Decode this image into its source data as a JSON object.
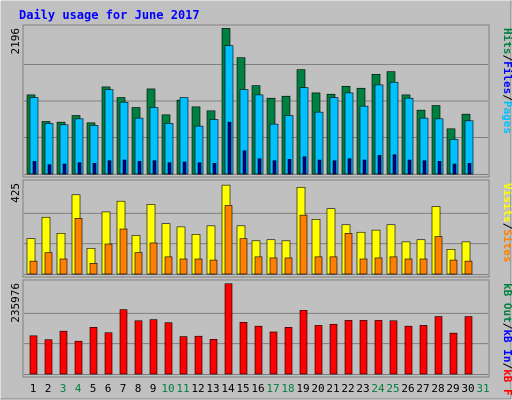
{
  "chart_data": {
    "type": "bar",
    "title": "Daily usage for June 2017",
    "categories": [
      "1",
      "2",
      "3",
      "4",
      "5",
      "6",
      "7",
      "8",
      "9",
      "10",
      "11",
      "12",
      "13",
      "14",
      "15",
      "16",
      "17",
      "18",
      "19",
      "20",
      "21",
      "22",
      "23",
      "24",
      "25",
      "26",
      "27",
      "28",
      "29",
      "30",
      "31"
    ],
    "weekend_days": [
      "3",
      "4",
      "10",
      "11",
      "17",
      "18",
      "24",
      "25",
      "31"
    ],
    "panels": [
      {
        "name": "hits",
        "scale_label": "2196",
        "ymax": 2196,
        "legend": [
          "Pages",
          "/",
          "Files",
          "/",
          "Hits"
        ],
        "series": [
          {
            "name": "Hits",
            "color": "#008040",
            "values": [
              1190,
              790,
              780,
              880,
              770,
              1310,
              1150,
              1000,
              1280,
              890,
              1110,
              1010,
              950,
              2190,
              1750,
              1330,
              1140,
              1170,
              1570,
              1220,
              1200,
              1320,
              1290,
              1500,
              1540,
              1190,
              960,
              1030,
              680,
              900,
              0
            ]
          },
          {
            "name": "Files",
            "color": "#00c0ff",
            "values": [
              1150,
              760,
              740,
              830,
              730,
              1270,
              1080,
              840,
              1000,
              760,
              1150,
              720,
              820,
              1930,
              1270,
              1190,
              750,
              880,
              1300,
              930,
              1150,
              1220,
              1020,
              1340,
              1380,
              1140,
              840,
              830,
              520,
              800,
              0
            ]
          },
          {
            "name": "Pages",
            "color": "#00008b",
            "values": [
              190,
              140,
              150,
              170,
              160,
              200,
              210,
              190,
              200,
              170,
              180,
              170,
              160,
              780,
              350,
              230,
              200,
              220,
              260,
              210,
              200,
              230,
              210,
              280,
              290,
              210,
              200,
              190,
              150,
              160,
              0
            ]
          }
        ]
      },
      {
        "name": "visits",
        "scale_label": "425",
        "ymax": 425,
        "legend": [
          "Visits",
          "/",
          "Sites"
        ],
        "series": [
          {
            "name": "Visits",
            "color": "#ffff00",
            "values": [
              165,
              265,
              190,
              370,
              120,
              290,
              340,
              180,
              325,
              235,
              220,
              185,
              225,
              415,
              225,
              155,
              160,
              155,
              405,
              255,
              305,
              230,
              195,
              205,
              230,
              150,
              160,
              315,
              115,
              150,
              0
            ]
          },
          {
            "name": "Sites",
            "color": "#ff8000",
            "values": [
              60,
              100,
              70,
              260,
              50,
              140,
              210,
              100,
              145,
              80,
              70,
              70,
              65,
              320,
              165,
              80,
              75,
              75,
              275,
              80,
              80,
              190,
              70,
              75,
              80,
              70,
              70,
              175,
              65,
              60,
              0
            ]
          }
        ]
      },
      {
        "name": "kbytes",
        "scale_label": "235976",
        "ymax": 235976,
        "legend": [
          "kB F",
          "/",
          "kB In",
          "/",
          "kB Out"
        ],
        "series": [
          {
            "name": "kB F",
            "color": "#ff0000",
            "values": [
              99000,
              89000,
              111000,
              85000,
              121000,
              107000,
              167000,
              138000,
              141000,
              133000,
              97000,
              98000,
              90000,
              234000,
              134000,
              124000,
              109000,
              121000,
              165000,
              126000,
              129000,
              139000,
              139000,
              139000,
              138000,
              124000,
              126000,
              149000,
              106000,
              149000,
              0
            ]
          }
        ]
      }
    ]
  }
}
